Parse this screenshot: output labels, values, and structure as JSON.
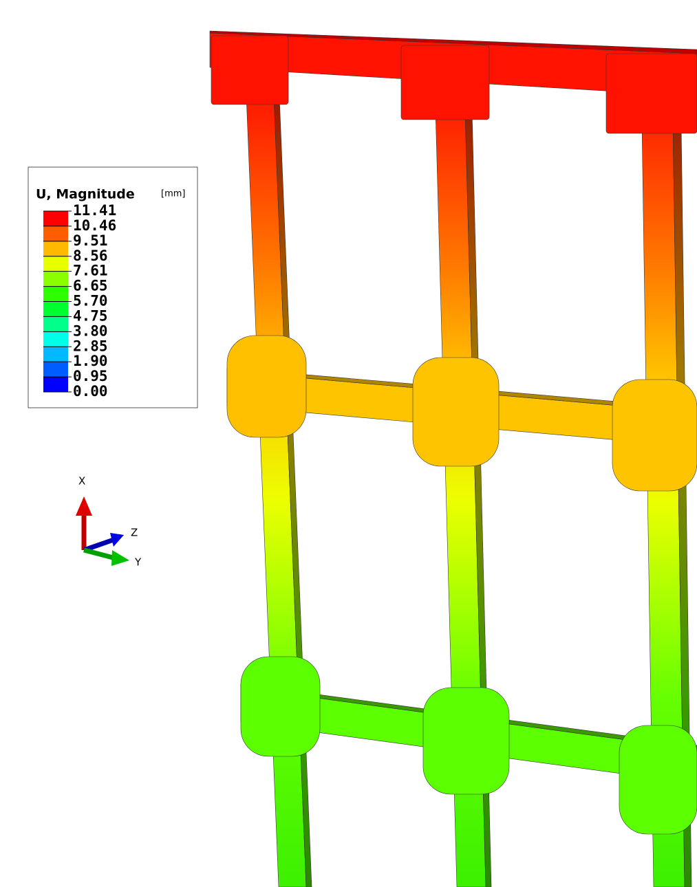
{
  "legend": {
    "title": "U, Magnitude",
    "unit": "[mm]",
    "levels": [
      "11.41",
      "10.46",
      "9.51",
      "8.56",
      "7.61",
      "6.65",
      "5.70",
      "4.75",
      "3.80",
      "2.85",
      "1.90",
      "0.95",
      "0.00"
    ],
    "band_colors": [
      "#ff0000",
      "#ff5d00",
      "#ffb900",
      "#e8ff00",
      "#8bff00",
      "#2eff00",
      "#00ff2e",
      "#00ff8b",
      "#00ffe8",
      "#00b9ff",
      "#005dff",
      "#0000ff"
    ]
  },
  "triad": {
    "x": "X",
    "y": "Y",
    "z": "Z"
  }
}
